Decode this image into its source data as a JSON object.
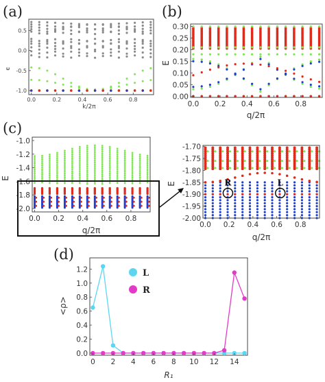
{
  "colors": {
    "gray": "#8a8a8a",
    "green": "#7ee650",
    "red": "#dd2b1c",
    "blue": "#1f3fd1",
    "cyan": "#5cd6f0",
    "magenta": "#e23bc8",
    "frame": "#444444"
  },
  "chart_data": [
    {
      "panel_label": "(a)",
      "type": "scatter",
      "xlabel": "k/2π",
      "ylabel": "ϵ",
      "xlim": [
        -0.02,
        0.96
      ],
      "ylim": [
        -1.1,
        0.78
      ],
      "xticks": [
        "0.0",
        "0.2",
        "0.4",
        "0.6",
        "0.8"
      ],
      "xtick_values": [
        0,
        0.2,
        0.4,
        0.6,
        0.8
      ],
      "yticks": [
        "-1.0",
        "-0.5",
        "0.0",
        "0.5"
      ],
      "ytick_values": [
        -1.0,
        -0.5,
        0.0,
        0.5
      ],
      "k_values": [
        0,
        0.0625,
        0.125,
        0.1875,
        0.25,
        0.3125,
        0.375,
        0.4375,
        0.5,
        0.5625,
        0.625,
        0.6875,
        0.75,
        0.8125,
        0.875,
        0.9375
      ],
      "series": [
        {
          "color": "gray",
          "description_levels": [
            0.68,
            0.62,
            0.56,
            0.5,
            0.44,
            0.26,
            0.2,
            0.14,
            0.05,
            -0.05,
            -0.15
          ]
        },
        {
          "color": "green",
          "min": -0.98,
          "max": -0.4
        },
        {
          "color": "red",
          "value": -1.0
        },
        {
          "color": "blue",
          "value": -1.0
        }
      ]
    },
    {
      "panel_label": "(b)",
      "type": "scatter",
      "xlabel": "q/2π",
      "ylabel": "E",
      "xlim": [
        -0.02,
        0.96
      ],
      "ylim": [
        -0.005,
        0.31
      ],
      "xticks": [
        "0.0",
        "0.2",
        "0.4",
        "0.6",
        "0.8"
      ],
      "xtick_values": [
        0,
        0.2,
        0.4,
        0.6,
        0.8
      ],
      "yticks": [
        "0.00",
        "0.05",
        "0.10",
        "0.15",
        "0.20",
        "0.25",
        "0.30"
      ],
      "ytick_values": [
        0,
        0.05,
        0.1,
        0.15,
        0.2,
        0.25,
        0.3
      ],
      "series": [
        {
          "color": "red",
          "band": [
            0.2,
            0.298
          ]
        },
        {
          "color": "green",
          "band": [
            0.0,
            0.3
          ]
        },
        {
          "color": "blue",
          "band": [
            0.0,
            0.18
          ]
        },
        {
          "color": "red",
          "value": 0.0
        }
      ]
    },
    {
      "panel_label": "(c)",
      "type": "scatter",
      "xlabel": "q/2π",
      "ylabel": "E",
      "xlim": [
        -0.02,
        0.96
      ],
      "ylim": [
        -2.05,
        -0.95
      ],
      "xticks": [
        "0.0",
        "0.2",
        "0.4",
        "0.6",
        "0.8"
      ],
      "xtick_values": [
        0,
        0.2,
        0.4,
        0.6,
        0.8
      ],
      "yticks": [
        "-1.0",
        "-1.2",
        "-1.4",
        "-1.6",
        "-1.8",
        "-2.0"
      ],
      "ytick_values": [
        -1.0,
        -1.2,
        -1.4,
        -1.6,
        -1.8,
        -2.0
      ],
      "series": [
        {
          "color": "green",
          "band": [
            -1.65,
            -1.0
          ]
        },
        {
          "color": "red",
          "band": [
            -1.78,
            -1.7
          ]
        },
        {
          "color": "blue",
          "band": [
            -2.0,
            -1.85
          ]
        }
      ]
    },
    {
      "panel_label": "(c) inset",
      "type": "scatter",
      "xlabel": "q/2π",
      "ylabel": "E",
      "xlim": [
        -0.02,
        0.96
      ],
      "ylim": [
        -2.0,
        -1.695
      ],
      "xticks": [
        "0.0",
        "0.2",
        "0.4",
        "0.6",
        "0.8"
      ],
      "xtick_values": [
        0,
        0.2,
        0.4,
        0.6,
        0.8
      ],
      "yticks": [
        "-1.70",
        "-1.75",
        "-1.80",
        "-1.85",
        "-1.90",
        "-1.95",
        "-2.00"
      ],
      "ytick_values": [
        -1.7,
        -1.75,
        -1.8,
        -1.85,
        -1.9,
        -1.95,
        -2.0
      ],
      "annotations": [
        {
          "text": "R",
          "x": 0.19,
          "y": -1.895
        },
        {
          "text": "L",
          "x": 0.63,
          "y": -1.895
        }
      ],
      "series": [
        {
          "color": "red",
          "band": [
            -1.84,
            -1.7
          ]
        },
        {
          "color": "green",
          "band": [
            -1.8,
            -1.7
          ]
        },
        {
          "color": "blue",
          "band": [
            -2.0,
            -1.85
          ]
        }
      ]
    },
    {
      "panel_label": "(d)",
      "type": "line",
      "xlabel": "R₁",
      "ylabel": "<ρ>",
      "xlim": [
        -0.3,
        15.3
      ],
      "ylim": [
        -0.03,
        1.36
      ],
      "xticks": [
        "0",
        "2",
        "4",
        "6",
        "8",
        "10",
        "12",
        "14"
      ],
      "xtick_values": [
        0,
        2,
        4,
        6,
        8,
        10,
        12,
        14
      ],
      "yticks": [
        "0.0",
        "0.2",
        "0.4",
        "0.6",
        "0.8",
        "1.0",
        "1.2"
      ],
      "ytick_values": [
        0,
        0.2,
        0.4,
        0.6,
        0.8,
        1.0,
        1.2
      ],
      "x": [
        0,
        1,
        2,
        3,
        4,
        5,
        6,
        7,
        8,
        9,
        10,
        11,
        12,
        13,
        14,
        15
      ],
      "series": [
        {
          "name": "L",
          "color": "cyan",
          "values": [
            0.65,
            1.24,
            0.11,
            0.0,
            0.0,
            0.0,
            0.0,
            0.0,
            0.0,
            0.0,
            0.0,
            0.0,
            0.0,
            0.0,
            0.0,
            0.0
          ]
        },
        {
          "name": "R",
          "color": "magenta",
          "values": [
            0.0,
            0.0,
            0.0,
            0.0,
            0.0,
            0.0,
            0.0,
            0.0,
            0.0,
            0.0,
            0.0,
            0.0,
            0.0,
            0.04,
            1.15,
            0.78
          ]
        }
      ],
      "legend": "top-left"
    }
  ]
}
